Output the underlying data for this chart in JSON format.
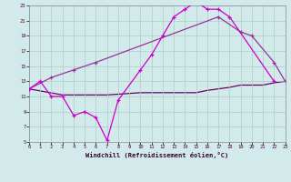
{
  "bg_color": "#d2eaea",
  "grid_color": "#aacccc",
  "line1_color": "#cc00cc",
  "line2_color": "#993399",
  "line3_color": "#660066",
  "xlabel": "Windchill (Refroidissement éolien,°C)",
  "xlim": [
    0,
    23
  ],
  "ylim": [
    5,
    23
  ],
  "yticks": [
    5,
    7,
    9,
    11,
    13,
    15,
    17,
    19,
    21,
    23
  ],
  "xticks": [
    0,
    1,
    2,
    3,
    4,
    5,
    6,
    7,
    8,
    9,
    10,
    11,
    12,
    13,
    14,
    15,
    16,
    17,
    18,
    19,
    20,
    21,
    22,
    23
  ],
  "line1_x": [
    0,
    1,
    2,
    3,
    4,
    5,
    6,
    7,
    8,
    10,
    11,
    12,
    13,
    14,
    15,
    16,
    17,
    18,
    22
  ],
  "line1_y": [
    12,
    13,
    11,
    11,
    8.5,
    9,
    8.2,
    5.2,
    10.5,
    14.5,
    16.5,
    19,
    21.5,
    22.5,
    23.5,
    22.5,
    22.5,
    21.5,
    13
  ],
  "line2_x": [
    0,
    2,
    4,
    6,
    17,
    19,
    20,
    22,
    23
  ],
  "line2_y": [
    12,
    13.5,
    14.5,
    15.5,
    21.5,
    19.5,
    19.0,
    15.5,
    13
  ],
  "line3_x": [
    0,
    3,
    7,
    10,
    11,
    12,
    13,
    14,
    15,
    16,
    17,
    18,
    19,
    20,
    21,
    22,
    23
  ],
  "line3_y": [
    12,
    11.2,
    11.2,
    11.5,
    11.5,
    11.5,
    11.5,
    11.5,
    11.5,
    11.8,
    12,
    12.2,
    12.5,
    12.5,
    12.5,
    12.8,
    13
  ]
}
